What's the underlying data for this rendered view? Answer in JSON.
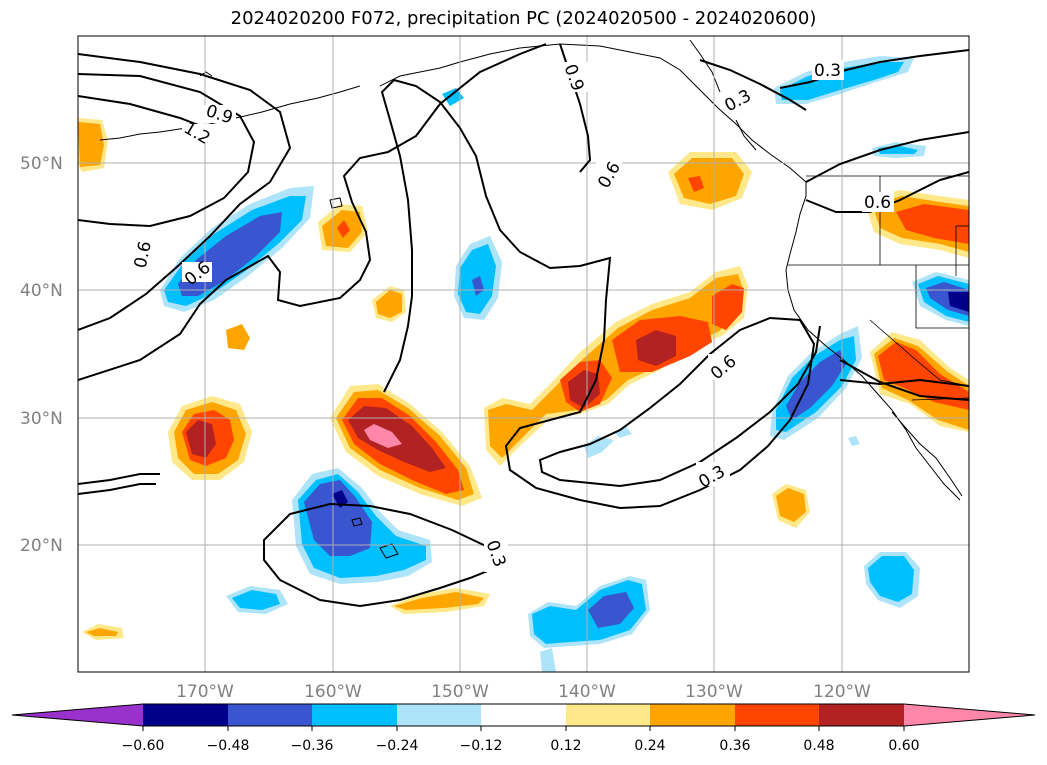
{
  "title": "2024020200 F072, precipitation PC (2024020500 - 2024020600)",
  "map": {
    "lat_labels": [
      "50°N",
      "40°N",
      "30°N",
      "20°N"
    ],
    "lon_labels": [
      "170°W",
      "160°W",
      "150°W",
      "140°W",
      "130°W",
      "120°W"
    ],
    "contour_labels": [
      "0.9",
      "1.2",
      "0.6",
      "0.6",
      "0.9",
      "0.6",
      "0.3",
      "0.3",
      "0.6",
      "0.6",
      "0.3",
      "0.3"
    ],
    "colors": {
      "purple": "#9932cc",
      "navy": "#00008b",
      "royal_blue": "#3a55d0",
      "deep_sky_blue": "#00bfff",
      "light_blue": "#aee4fa",
      "white": "#ffffff",
      "light_yellow": "#ffe88a",
      "orange": "#ffa500",
      "orange_red": "#ff4500",
      "firebrick": "#b22222",
      "pink": "#ff88aa"
    }
  },
  "colorbar": {
    "ticks": [
      "−0.60",
      "−0.48",
      "−0.36",
      "−0.24",
      "−0.12",
      "0.12",
      "0.24",
      "0.36",
      "0.48",
      "0.60"
    ]
  }
}
